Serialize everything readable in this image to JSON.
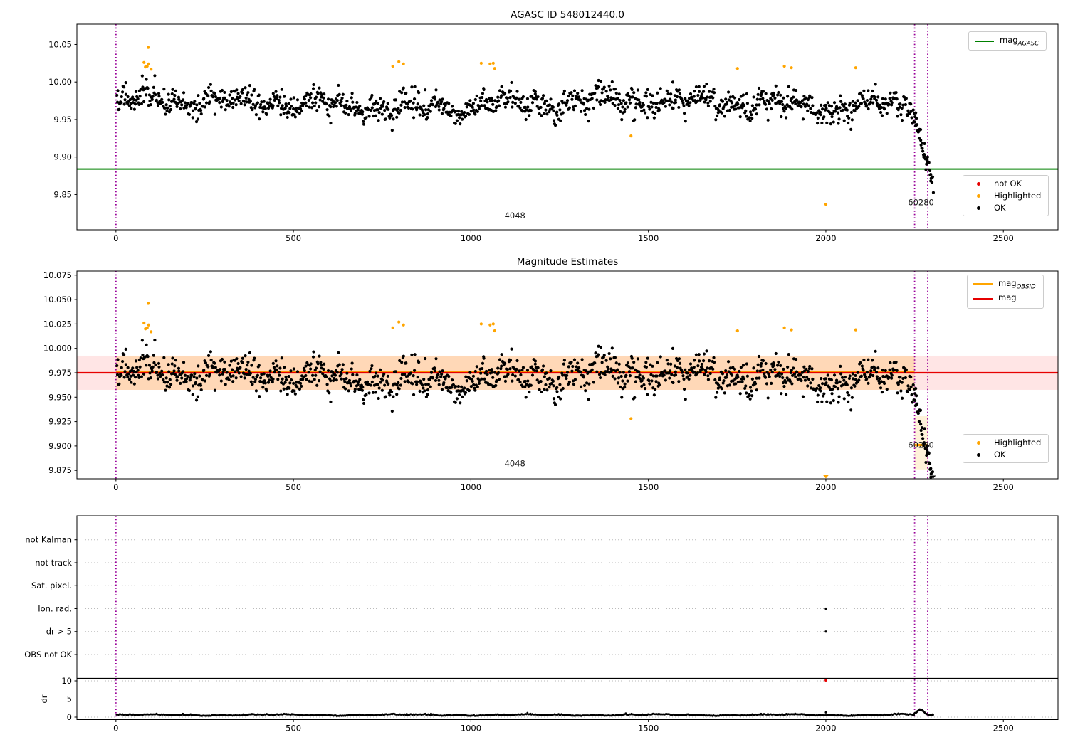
{
  "figure": {
    "bg": "#ffffff"
  },
  "palette": {
    "black": "#000000",
    "green": "#008000",
    "red": "#e60000",
    "orange": "#ffa500",
    "vline_purple": "#990099",
    "grid_gray": "#bbbbbb",
    "band_pink": "rgba(255,0,0,0.10)",
    "band_orange": "rgba(255,165,0,0.20)",
    "band_orange_light": "rgba(255,165,0,0.15)"
  },
  "legends": {
    "p1_main": {
      "items": [
        {
          "type": "line",
          "color": "#008000",
          "label": "mag",
          "sub": "AGASC"
        }
      ]
    },
    "p1_flags": {
      "items": [
        {
          "type": "dot",
          "color": "#e60000",
          "label": "not OK"
        },
        {
          "type": "dot",
          "color": "#ffa500",
          "label": "Highlighted"
        },
        {
          "type": "dot",
          "color": "#000000",
          "label": "OK"
        }
      ]
    },
    "p2_main": {
      "items": [
        {
          "type": "line",
          "color": "#ffa500",
          "label": "mag",
          "sub": "OBSID"
        },
        {
          "type": "line",
          "color": "#e60000",
          "label": "mag",
          "sub": ""
        }
      ]
    },
    "p2_flags": {
      "items": [
        {
          "type": "dot",
          "color": "#ffa500",
          "label": "Highlighted"
        },
        {
          "type": "dot",
          "color": "#000000",
          "label": "OK"
        }
      ]
    }
  },
  "chart_data": [
    {
      "type": "scatter",
      "title": "AGASC ID 548012440.0",
      "xlabel": "",
      "ylabel": "",
      "xlim": [
        -110,
        2654
      ],
      "ylim": [
        9.803,
        10.077
      ],
      "xticks": [
        0,
        500,
        1000,
        1500,
        2000,
        2500
      ],
      "yticks": [
        9.85,
        9.9,
        9.95,
        10.0,
        10.05
      ],
      "ytick_labels": [
        "9.85",
        "9.90",
        "9.95",
        "10.00",
        "10.05"
      ],
      "grid": false,
      "legend_position": [
        "upper right",
        "lower right"
      ],
      "hlines": [
        {
          "name": "mag_agasc",
          "y": 9.884,
          "x0": -110,
          "x1": 2654,
          "color": "#008000",
          "w": 2
        }
      ],
      "vlines": [
        0,
        2250,
        2287
      ],
      "annotations": [
        {
          "text": "4048",
          "x": 1124,
          "y": 9.818
        },
        {
          "text": "60280",
          "x": 2268,
          "y": 9.8355
        }
      ]
    },
    {
      "type": "scatter",
      "title": "Magnitude Estimates",
      "xlabel": "",
      "ylabel": "",
      "xlim": [
        -110,
        2654
      ],
      "ylim": [
        9.8664,
        10.0792
      ],
      "xticks": [
        0,
        500,
        1000,
        1500,
        2000,
        2500
      ],
      "yticks": [
        9.875,
        9.9,
        9.925,
        9.95,
        9.975,
        10.0,
        10.025,
        10.05,
        10.075
      ],
      "ytick_labels": [
        "9.875",
        "9.900",
        "9.925",
        "9.950",
        "9.975",
        "10.000",
        "10.025",
        "10.050",
        "10.075"
      ],
      "grid": false,
      "mag_mean": 9.975,
      "mag_band": [
        9.9575,
        9.9925
      ],
      "obsid_4048": {
        "mag": 9.9755,
        "x0": 0,
        "x1": 2250
      },
      "obsid_60280": {
        "mag": 9.901,
        "x0": 2250,
        "x1": 2287,
        "band": [
          9.876,
          9.9305
        ]
      },
      "bands": [
        {
          "x0": -110,
          "x1": 2654,
          "y0": 9.9575,
          "y1": 9.9925,
          "color": "band_pink"
        },
        {
          "x0": 0,
          "x1": 2250,
          "y0": 9.9575,
          "y1": 9.9925,
          "color": "band_orange"
        },
        {
          "x0": 2250,
          "x1": 2287,
          "y0": 9.876,
          "y1": 9.9305,
          "color": "band_orange_light"
        }
      ],
      "hlines": [
        {
          "name": "mag_obsid_4048",
          "y": 9.9755,
          "x0": 0,
          "x1": 2250,
          "color": "#ffa500",
          "w": 3.2
        },
        {
          "name": "mag",
          "y": 9.975,
          "x0": -110,
          "x1": 2654,
          "color": "#e60000",
          "w": 2.2
        },
        {
          "name": "mag_obsid_60280",
          "y": 9.901,
          "x0": 2250,
          "x1": 2287,
          "color": "#ffa500",
          "w": 3.2
        }
      ],
      "vlines": [
        0,
        2250,
        2287
      ],
      "annotations": [
        {
          "text": "4048",
          "x": 1124,
          "y": 9.879
        },
        {
          "text": "60280",
          "x": 2268,
          "y": 9.898
        }
      ]
    },
    {
      "type": "scatter",
      "title": "",
      "ylabel": "dr",
      "xlim": [
        -110,
        2654
      ],
      "xticks": [
        0,
        500,
        1000,
        1500,
        2000,
        2500
      ],
      "categories": [
        "OBS not OK",
        "dr > 5",
        "Ion. rad.",
        "Sat. pixel.",
        "not track",
        "not Kalman"
      ],
      "dr_ticks": [
        0,
        5,
        10
      ],
      "grid": true,
      "separator_line": true,
      "vlines": [
        0,
        2250,
        2287
      ],
      "flag_points": [
        {
          "x": 2000,
          "cat": "Ion. rad."
        },
        {
          "x": 2000,
          "cat": "dr > 5"
        }
      ],
      "not_ok_points": [
        {
          "x": 2000,
          "dr": 10.15
        }
      ],
      "dr_outliers": [
        {
          "x": 2000,
          "dr": 1.3
        }
      ]
    }
  ],
  "highlighted_points": [
    [
      79,
      10.026
    ],
    [
      83,
      10.02
    ],
    [
      88,
      10.021
    ],
    [
      91,
      10.046
    ],
    [
      92,
      10.024
    ],
    [
      99,
      10.017
    ],
    [
      780,
      10.021
    ],
    [
      797,
      10.027
    ],
    [
      810,
      10.024
    ],
    [
      1029,
      10.025
    ],
    [
      1054,
      10.024
    ],
    [
      1063,
      10.025
    ],
    [
      1067,
      10.018
    ],
    [
      1451,
      9.928
    ],
    [
      1751,
      10.018
    ],
    [
      1883,
      10.021
    ],
    [
      1903,
      10.019
    ],
    [
      2000,
      9.837
    ],
    [
      2084,
      10.019
    ]
  ],
  "series_generators": {
    "main_scatter": {
      "seed": 20240,
      "n": 1250,
      "x0": 2,
      "x1": 2246,
      "base": 9.9715,
      "waves": [
        [
          0.0065,
          41.3,
          0
        ],
        [
          0.005,
          14.7,
          2.1
        ],
        [
          0.0042,
          201,
          0.7
        ],
        [
          0.0035,
          7.3,
          4.0
        ]
      ],
      "noise_sd": 0.0085
    },
    "tail_scatter": {
      "seed": 77,
      "n": 46,
      "x0": 2248,
      "x1": 2302,
      "y_start": 9.953,
      "y_drop": 0.09,
      "noise_sd": 0.007
    },
    "dr_trace": {
      "seed": 9,
      "n": 820,
      "x0": 2,
      "x1": 2248,
      "base": 0.52,
      "waves": [
        [
          0.14,
          57,
          0
        ],
        [
          0.08,
          15.2,
          1.0
        ]
      ],
      "noise_sd": 0.12
    },
    "dr_tail": {
      "seed": 5,
      "n": 34,
      "x0": 2248,
      "x1": 2302,
      "base": 0.55,
      "bump_x": 2266,
      "bump_h": 1.45
    }
  }
}
